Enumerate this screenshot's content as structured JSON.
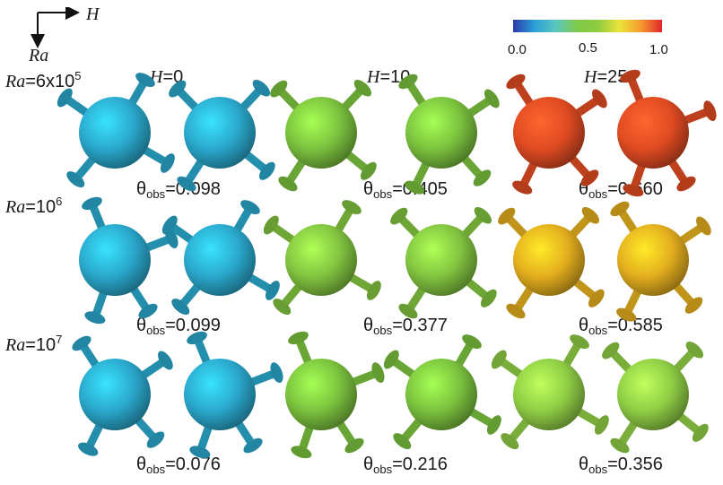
{
  "axes": {
    "horizontal": "H",
    "vertical": "Ra"
  },
  "colorbar": {
    "ticks": [
      "0.0",
      "0.5",
      "1.0"
    ]
  },
  "columns": [
    {
      "var": "H",
      "value": "0"
    },
    {
      "var": "H",
      "value": "10"
    },
    {
      "var": "H",
      "value": "25"
    }
  ],
  "rows": [
    {
      "prefix": "Ra",
      "eq": "=6x10",
      "exp": "5"
    },
    {
      "prefix": "Ra",
      "eq": "=10",
      "exp": "6"
    },
    {
      "prefix": "Ra",
      "eq": "=10",
      "exp": "7"
    }
  ],
  "theta_symbol": "θ",
  "theta_sub": "obs",
  "theta_values": [
    [
      "=0.098",
      "=0.405",
      "=0.660"
    ],
    [
      "=0.099",
      "=0.377",
      "=0.585"
    ],
    [
      "=0.076",
      "=0.216",
      "=0.356"
    ]
  ],
  "colors": {
    "blue": "#2aa8cc",
    "green": "#7bc23e",
    "green_mid": "#82c440",
    "red": "#e04b22",
    "yellow": "#e3ae1e",
    "green_light": "#8fcd45",
    "bar_stops": [
      "#2b3aa8",
      "#2c9fd8",
      "#59c7c0",
      "#7fc94a",
      "#8fcc3f",
      "#ece43a",
      "#f59a2f",
      "#e0262a"
    ]
  }
}
